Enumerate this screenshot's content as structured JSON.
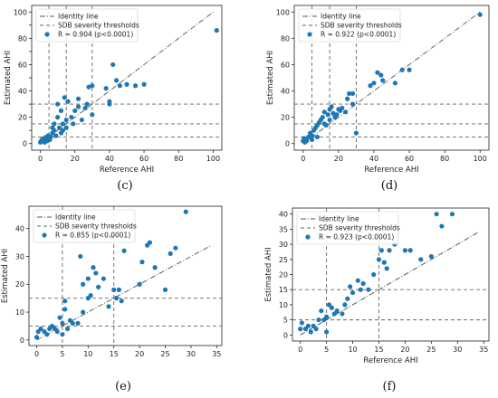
{
  "captions": [
    "(c)",
    "(d)",
    "(e)",
    "(f)"
  ],
  "colors": {
    "point": "#1f77b4",
    "identity": "#555555",
    "threshold": "#666666",
    "frame": "#222222"
  },
  "chart_data": [
    {
      "type": "scatter",
      "xlabel": "Reference AHI",
      "ylabel": "Estimated AHI",
      "xlim": [
        -5,
        105
      ],
      "ylim": [
        -5,
        105
      ],
      "xticks": [
        0,
        20,
        40,
        60,
        80,
        100
      ],
      "yticks": [
        0,
        10,
        20,
        30,
        40,
        50,
        60,
        70,
        80,
        90,
        100
      ],
      "ytick_labels": [
        "0",
        "",
        "20",
        "",
        "40",
        "",
        "60",
        "",
        "80",
        "",
        "100"
      ],
      "thresholds": [
        5,
        15,
        30
      ],
      "identity_range": [
        0,
        100
      ],
      "legend": {
        "identity": "Identity line",
        "thresholds": "SDB severity thresholds",
        "points": "R = 0.904 (p<0.0001)"
      },
      "legend_position": "top-left",
      "points": [
        [
          0,
          1
        ],
        [
          0.5,
          2
        ],
        [
          1,
          3
        ],
        [
          1.5,
          2
        ],
        [
          2,
          4
        ],
        [
          2.5,
          1
        ],
        [
          3,
          3
        ],
        [
          3.5,
          5
        ],
        [
          4,
          2
        ],
        [
          4.5,
          6
        ],
        [
          5,
          4
        ],
        [
          5.5,
          3
        ],
        [
          6,
          5
        ],
        [
          7,
          8
        ],
        [
          7,
          12
        ],
        [
          8,
          10
        ],
        [
          8,
          15
        ],
        [
          9,
          6
        ],
        [
          10,
          20
        ],
        [
          10,
          30
        ],
        [
          11,
          12
        ],
        [
          12,
          8
        ],
        [
          12,
          25
        ],
        [
          13,
          15
        ],
        [
          13,
          10
        ],
        [
          14,
          35
        ],
        [
          15,
          18
        ],
        [
          15,
          12
        ],
        [
          16,
          32
        ],
        [
          18,
          20
        ],
        [
          19,
          15
        ],
        [
          20,
          25
        ],
        [
          22,
          28
        ],
        [
          22,
          34
        ],
        [
          24,
          18
        ],
        [
          26,
          27
        ],
        [
          27,
          30
        ],
        [
          28,
          43
        ],
        [
          30,
          22
        ],
        [
          30,
          44
        ],
        [
          38,
          42
        ],
        [
          40,
          30
        ],
        [
          40,
          32
        ],
        [
          42,
          60
        ],
        [
          44,
          48
        ],
        [
          46,
          44
        ],
        [
          50,
          45
        ],
        [
          55,
          44
        ],
        [
          60,
          45
        ],
        [
          102,
          86
        ]
      ]
    },
    {
      "type": "scatter",
      "xlabel": "Reference AHI",
      "ylabel": "Estimated AHI",
      "xlim": [
        -5,
        105
      ],
      "ylim": [
        -5,
        105
      ],
      "xticks": [
        0,
        20,
        40,
        60,
        80,
        100
      ],
      "yticks": [
        0,
        20,
        40,
        60,
        80,
        100
      ],
      "ytick_labels": [
        "0",
        "20",
        "40",
        "60",
        "80",
        "100"
      ],
      "thresholds": [
        5,
        15,
        30
      ],
      "identity_range": [
        0,
        100
      ],
      "legend": {
        "identity": "Identity line",
        "thresholds": "SDB severity thresholds",
        "points": "R = 0.922 (p<0.0001)"
      },
      "legend_position": "top-left",
      "points": [
        [
          0,
          2
        ],
        [
          0.5,
          4
        ],
        [
          1,
          1
        ],
        [
          1.5,
          3
        ],
        [
          2,
          2
        ],
        [
          3,
          5
        ],
        [
          4,
          8
        ],
        [
          5,
          6
        ],
        [
          5,
          3
        ],
        [
          6,
          10
        ],
        [
          7,
          12
        ],
        [
          8,
          14
        ],
        [
          8,
          5
        ],
        [
          9,
          16
        ],
        [
          10,
          18
        ],
        [
          11,
          20
        ],
        [
          12,
          24
        ],
        [
          12,
          15
        ],
        [
          13,
          14
        ],
        [
          14,
          22
        ],
        [
          15,
          18
        ],
        [
          15,
          26
        ],
        [
          16,
          28
        ],
        [
          17,
          23
        ],
        [
          18,
          20
        ],
        [
          19,
          22
        ],
        [
          20,
          26
        ],
        [
          21,
          25
        ],
        [
          22,
          27
        ],
        [
          24,
          24
        ],
        [
          25,
          34
        ],
        [
          26,
          38
        ],
        [
          28,
          38
        ],
        [
          28,
          30
        ],
        [
          30,
          8
        ],
        [
          38,
          44
        ],
        [
          40,
          46
        ],
        [
          42,
          54
        ],
        [
          44,
          52
        ],
        [
          45,
          48
        ],
        [
          52,
          46
        ],
        [
          56,
          56
        ],
        [
          60,
          56
        ],
        [
          100,
          98
        ]
      ]
    },
    {
      "type": "scatter",
      "xlabel": "",
      "ylabel": "Estimated AHI",
      "xlim": [
        -1.5,
        36
      ],
      "ylim": [
        -2,
        48
      ],
      "xticks": [
        0,
        5,
        10,
        15,
        20,
        25,
        30,
        35
      ],
      "yticks": [
        0,
        10,
        20,
        30,
        40
      ],
      "ytick_labels": [
        "0",
        "10",
        "20",
        "30",
        "40"
      ],
      "thresholds": [
        5,
        15
      ],
      "identity_range": [
        0,
        34
      ],
      "legend": {
        "identity": "Identity line",
        "thresholds": "SDB severity thresholds",
        "points": "R = 0.855 (p<0.0001)"
      },
      "legend_position": "top-left",
      "points": [
        [
          0,
          1
        ],
        [
          0.3,
          3
        ],
        [
          0.8,
          4
        ],
        [
          1.5,
          3
        ],
        [
          2,
          2
        ],
        [
          2.5,
          4
        ],
        [
          3,
          5
        ],
        [
          3.5,
          4
        ],
        [
          4,
          3
        ],
        [
          4.5,
          8
        ],
        [
          5,
          2
        ],
        [
          5,
          6
        ],
        [
          5.5,
          11
        ],
        [
          5.5,
          14
        ],
        [
          6,
          4
        ],
        [
          6.5,
          7
        ],
        [
          7,
          6
        ],
        [
          8,
          6
        ],
        [
          8.5,
          30
        ],
        [
          9,
          20
        ],
        [
          9,
          10
        ],
        [
          10,
          22
        ],
        [
          10,
          15
        ],
        [
          10.5,
          16
        ],
        [
          11,
          26
        ],
        [
          11.5,
          24
        ],
        [
          12,
          19
        ],
        [
          13,
          22
        ],
        [
          14,
          12
        ],
        [
          14.5,
          37
        ],
        [
          15,
          18
        ],
        [
          15.5,
          15
        ],
        [
          16,
          18
        ],
        [
          16.5,
          14
        ],
        [
          17,
          32
        ],
        [
          20,
          20
        ],
        [
          20.5,
          28
        ],
        [
          21.5,
          34
        ],
        [
          22,
          35
        ],
        [
          23,
          26
        ],
        [
          25,
          18
        ],
        [
          26,
          31
        ],
        [
          27,
          33
        ],
        [
          29,
          46
        ]
      ]
    },
    {
      "type": "scatter",
      "xlabel": "Reference AHI",
      "ylabel": "Estimated AHI",
      "xlim": [
        -1.5,
        36
      ],
      "ylim": [
        -2,
        42
      ],
      "xticks": [
        0,
        5,
        10,
        15,
        20,
        25,
        30,
        35
      ],
      "yticks": [
        0,
        5,
        10,
        15,
        20,
        25,
        30,
        35,
        40
      ],
      "ytick_labels": [
        "0",
        "5",
        "10",
        "15",
        "20",
        "25",
        "30",
        "35",
        "40"
      ],
      "thresholds": [
        5,
        15
      ],
      "identity_range": [
        0,
        34
      ],
      "legend": {
        "identity": "Identity line",
        "thresholds": "SDB severity thresholds",
        "points": "R = 0.923 (p<0.0001)"
      },
      "legend_position": "top-left",
      "points": [
        [
          0,
          2
        ],
        [
          0.3,
          4
        ],
        [
          1,
          2
        ],
        [
          1.5,
          3
        ],
        [
          2,
          1
        ],
        [
          2.5,
          3
        ],
        [
          3,
          2
        ],
        [
          3.5,
          5
        ],
        [
          4,
          8
        ],
        [
          4.5,
          5
        ],
        [
          5,
          6
        ],
        [
          5,
          1
        ],
        [
          5.5,
          10
        ],
        [
          6,
          9
        ],
        [
          6.5,
          7
        ],
        [
          7,
          8
        ],
        [
          8,
          7
        ],
        [
          8.5,
          10
        ],
        [
          9,
          12
        ],
        [
          9.5,
          16
        ],
        [
          10,
          14
        ],
        [
          11,
          18
        ],
        [
          11.5,
          15
        ],
        [
          12,
          17
        ],
        [
          13,
          15
        ],
        [
          14,
          20
        ],
        [
          15,
          25
        ],
        [
          15.5,
          28
        ],
        [
          16,
          24
        ],
        [
          16.5,
          22
        ],
        [
          17,
          28
        ],
        [
          18,
          30
        ],
        [
          20,
          28
        ],
        [
          21,
          28
        ],
        [
          23,
          25
        ],
        [
          25,
          26
        ],
        [
          26,
          40
        ],
        [
          27,
          36
        ],
        [
          29,
          40
        ]
      ]
    }
  ]
}
